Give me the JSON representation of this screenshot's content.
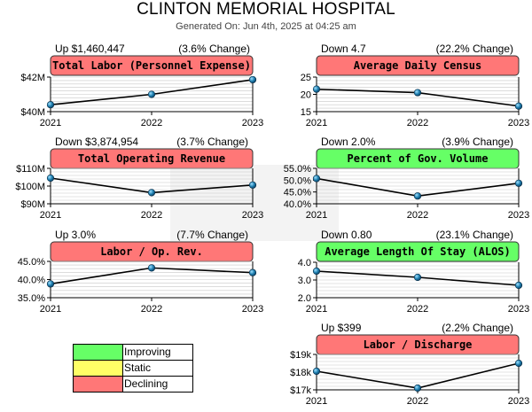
{
  "header": {
    "title": "CLINTON MEMORIAL HOSPITAL",
    "generated": "Generated On: Jun 4th, 2025 at 04:25 am"
  },
  "colors": {
    "improving": "#66ff66",
    "static": "#ffff66",
    "declining": "#ff7777"
  },
  "legend": [
    {
      "label": "Improving",
      "status": "improving"
    },
    {
      "label": "Static",
      "status": "static"
    },
    {
      "label": "Declining",
      "status": "declining"
    }
  ],
  "chart_data": [
    {
      "type": "line",
      "title": "Total Labor (Personnel Expense)",
      "status": "declining",
      "change_left": "Up $1,460,447",
      "change_right": "(3.6% Change)",
      "x": [
        "2021",
        "2022",
        "2023"
      ],
      "values": [
        40.4,
        41.0,
        41.85
      ],
      "ylim": [
        40,
        42
      ],
      "yticks": [
        40,
        42
      ],
      "ytick_labels": [
        "$40M",
        "$42M"
      ]
    },
    {
      "type": "line",
      "title": "Average Daily Census",
      "status": "declining",
      "change_left": "Down 4.7",
      "change_right": "(22.2% Change)",
      "x": [
        "2021",
        "2022",
        "2023"
      ],
      "values": [
        21.5,
        20.5,
        16.6
      ],
      "ylim": [
        15,
        25
      ],
      "yticks": [
        15,
        20,
        25
      ],
      "ytick_labels": [
        "15",
        "20",
        "25"
      ]
    },
    {
      "type": "line",
      "title": "Total Operating Revenue",
      "status": "declining",
      "change_left": "Down $3,874,954",
      "change_right": "(3.7% Change)",
      "x": [
        "2021",
        "2022",
        "2023"
      ],
      "values": [
        104.5,
        96.3,
        100.6
      ],
      "ylim": [
        90,
        110
      ],
      "yticks": [
        90,
        100,
        110
      ],
      "ytick_labels": [
        "$90M",
        "$100M",
        "$110M"
      ]
    },
    {
      "type": "line",
      "title": "Percent of Gov. Volume",
      "status": "improving",
      "change_left": "Down 2.0%",
      "change_right": "(3.9% Change)",
      "x": [
        "2021",
        "2022",
        "2023"
      ],
      "values": [
        50.7,
        43.3,
        48.7
      ],
      "ylim": [
        40,
        55
      ],
      "yticks": [
        40,
        45,
        50,
        55
      ],
      "ytick_labels": [
        "40.0%",
        "45.0%",
        "50.0%",
        "55.0%"
      ]
    },
    {
      "type": "line",
      "title": "Labor / Op. Rev.",
      "status": "declining",
      "change_left": "Up 3.0%",
      "change_right": "(7.7% Change)",
      "x": [
        "2021",
        "2022",
        "2023"
      ],
      "values": [
        38.8,
        43.2,
        41.9
      ],
      "ylim": [
        35,
        45
      ],
      "yticks": [
        35,
        40,
        45
      ],
      "ytick_labels": [
        "35.0%",
        "40.0%",
        "45.0%"
      ]
    },
    {
      "type": "line",
      "title": "Average Length Of Stay (ALOS)",
      "status": "improving",
      "change_left": "Down 0.80",
      "change_right": "(23.1% Change)",
      "x": [
        "2021",
        "2022",
        "2023"
      ],
      "values": [
        3.5,
        3.15,
        2.7
      ],
      "ylim": [
        2,
        4
      ],
      "yticks": [
        2,
        3,
        4
      ],
      "ytick_labels": [
        "2.0",
        "3.0",
        "4.0"
      ]
    },
    {
      "type": "line",
      "title": "Labor / Discharge",
      "status": "declining",
      "change_left": "Up $399",
      "change_right": "(2.2% Change)",
      "x": [
        "2021",
        "2022",
        "2023"
      ],
      "values": [
        18.05,
        17.1,
        18.5
      ],
      "ylim": [
        17,
        19
      ],
      "yticks": [
        17,
        18,
        19
      ],
      "ytick_labels": [
        "$17k",
        "$18k",
        "$19k"
      ]
    }
  ]
}
